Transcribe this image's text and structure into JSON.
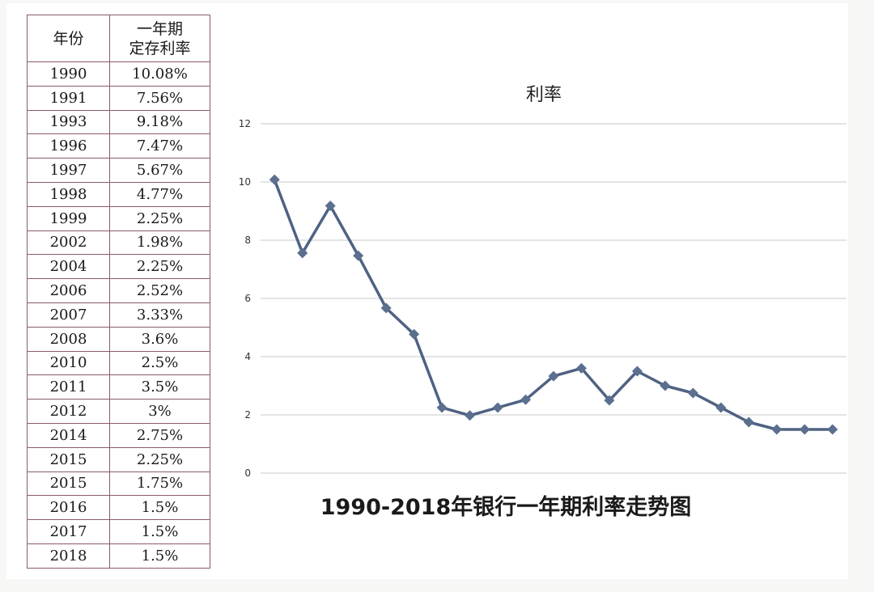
{
  "table": {
    "headers": [
      "年份",
      "一年期",
      "定存利率"
    ],
    "rows": [
      [
        "1990",
        "10.08%"
      ],
      [
        "1991",
        "7.56%"
      ],
      [
        "1993",
        "9.18%"
      ],
      [
        "1996",
        "7.47%"
      ],
      [
        "1997",
        "5.67%"
      ],
      [
        "1998",
        "4.77%"
      ],
      [
        "1999",
        "2.25%"
      ],
      [
        "2002",
        "1.98%"
      ],
      [
        "2004",
        "2.25%"
      ],
      [
        "2006",
        "2.52%"
      ],
      [
        "2007",
        "3.33%"
      ],
      [
        "2008",
        "3.6%"
      ],
      [
        "2010",
        "2.5%"
      ],
      [
        "2011",
        "3.5%"
      ],
      [
        "2012",
        "3%"
      ],
      [
        "2014",
        "2.75%"
      ],
      [
        "2015",
        "2.25%"
      ],
      [
        "2015",
        "1.75%"
      ],
      [
        "2016",
        "1.5%"
      ],
      [
        "2017",
        "1.5%"
      ],
      [
        "2018",
        "1.5%"
      ]
    ]
  },
  "chart_data": {
    "type": "line",
    "title": "利率",
    "caption": "1990-2018年银行一年期利率走势图",
    "x": [
      "1990",
      "1991",
      "1993",
      "1996",
      "1997",
      "1998",
      "1999",
      "2002",
      "2004",
      "2006",
      "2007",
      "2008",
      "2010",
      "2011",
      "2012",
      "2014",
      "2015",
      "2015",
      "2016",
      "2017",
      "2018"
    ],
    "series": [
      {
        "values": [
          10.08,
          7.56,
          9.18,
          7.47,
          5.67,
          4.77,
          2.25,
          1.98,
          2.25,
          2.52,
          3.33,
          3.6,
          2.5,
          3.5,
          3,
          2.75,
          2.25,
          1.75,
          1.5,
          1.5,
          1.5
        ]
      }
    ],
    "ylim": [
      0,
      12
    ],
    "yticks": [
      "0",
      "2",
      "4",
      "6",
      "8",
      "10",
      "12"
    ],
    "grid": true,
    "colors": {
      "line": "#4f6282",
      "marker": "#5b6f8f",
      "grid": "#c8c8c8"
    }
  }
}
